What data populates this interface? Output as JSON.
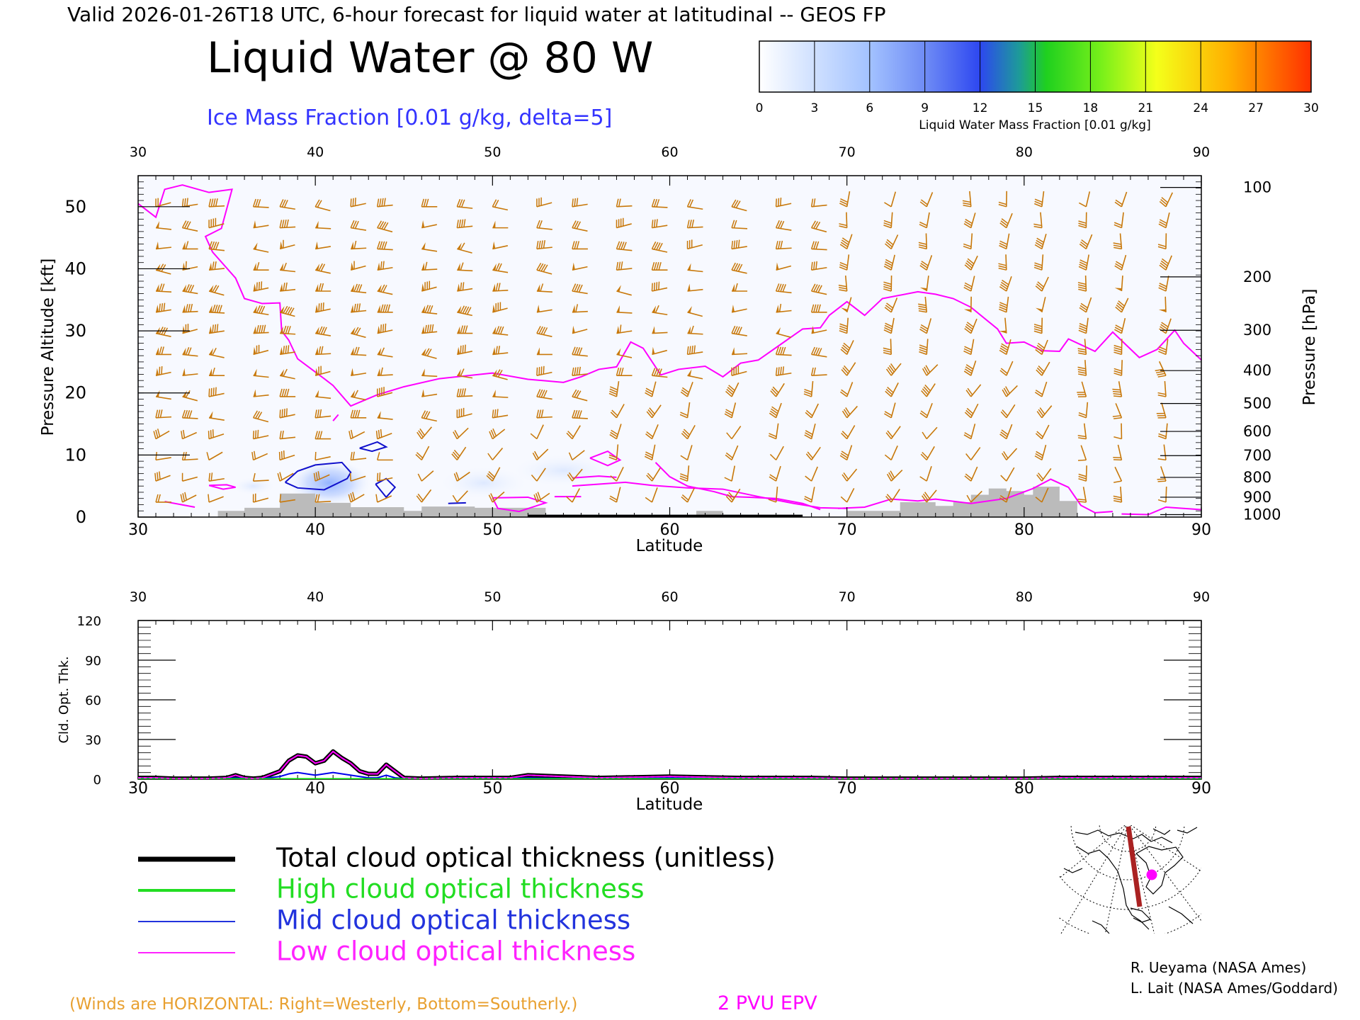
{
  "header": {
    "top_title": "Valid 2026-01-26T18 UTC, 6-hour forecast for liquid water at latitudinal -- GEOS FP",
    "main_title": "Liquid Water @ 80 W",
    "ice_label": "Ice Mass Fraction [0.01 g/kg, delta=5]"
  },
  "colorbar": {
    "ticks": [
      "0",
      "3",
      "6",
      "9",
      "12",
      "15",
      "18",
      "21",
      "24",
      "27",
      "30"
    ],
    "label": "Liquid Water Mass Fraction [0.01 g/kg]",
    "colors": [
      "#f8faff",
      "#c9dcff",
      "#9bbcff",
      "#7a8ef5",
      "#3f52f0",
      "#1e9ea0",
      "#28d628",
      "#7ef51a",
      "#f2ff1a",
      "#ffb000",
      "#ff3a00"
    ]
  },
  "chart_data": [
    {
      "type": "heatmap",
      "title": "Liquid Water @ 80 W",
      "xlabel": "Latitude",
      "ylabel": "Pressure Altitude [kft]",
      "ylabel_right": "Pressure [hPa]",
      "xlim": [
        30,
        90
      ],
      "ylim": [
        0,
        55
      ],
      "x_ticks": [
        30,
        40,
        50,
        60,
        70,
        80,
        90
      ],
      "y_ticks": [
        0,
        10,
        20,
        30,
        40,
        50
      ],
      "pressure_ticks": [
        {
          "label": "100",
          "kft": 53.1
        },
        {
          "label": "200",
          "kft": 38.7
        },
        {
          "label": "300",
          "kft": 30.1
        },
        {
          "label": "400",
          "kft": 23.6
        },
        {
          "label": "500",
          "kft": 18.3
        },
        {
          "label": "600",
          "kft": 13.8
        },
        {
          "label": "700",
          "kft": 9.9
        },
        {
          "label": "800",
          "kft": 6.4
        },
        {
          "label": "900",
          "kft": 3.2
        },
        {
          "label": "1000",
          "kft": 0.4
        }
      ],
      "epv_2pvu_line": [
        [
          30,
          50.5
        ],
        [
          31,
          48.3
        ],
        [
          31.5,
          52.8
        ],
        [
          32.5,
          53.5
        ],
        [
          34,
          52.3
        ],
        [
          35.3,
          52.8
        ],
        [
          34.7,
          46.5
        ],
        [
          33.8,
          45.2
        ],
        [
          34.2,
          42.7
        ],
        [
          35.5,
          38.5
        ],
        [
          36,
          35.2
        ],
        [
          37,
          34.4
        ],
        [
          38,
          34.5
        ],
        [
          38.1,
          30
        ],
        [
          38.5,
          28.5
        ],
        [
          39,
          25.5
        ],
        [
          40.5,
          22.3
        ],
        [
          41,
          21.2
        ],
        [
          42,
          17.9
        ],
        [
          43.5,
          19.7
        ],
        [
          45,
          21
        ],
        [
          47,
          22.3
        ],
        [
          50,
          23.2
        ],
        [
          52,
          22.2
        ],
        [
          54,
          21.7
        ],
        [
          55,
          22.6
        ],
        [
          56,
          23.8
        ],
        [
          57,
          24.2
        ],
        [
          57.8,
          28.2
        ],
        [
          58.5,
          27.2
        ],
        [
          59.5,
          22.9
        ],
        [
          60.5,
          23.8
        ],
        [
          62,
          24.3
        ],
        [
          63,
          22.6
        ],
        [
          64,
          24.8
        ],
        [
          65,
          25.3
        ],
        [
          66,
          27.3
        ],
        [
          67.5,
          30.3
        ],
        [
          68.5,
          30.5
        ],
        [
          69,
          32.5
        ],
        [
          70,
          34.7
        ],
        [
          71,
          32.5
        ],
        [
          72,
          35.2
        ],
        [
          74,
          36.3
        ],
        [
          75,
          35.9
        ],
        [
          76,
          35.2
        ],
        [
          77,
          33.8
        ],
        [
          78.5,
          30.3
        ],
        [
          79,
          28
        ],
        [
          80,
          28.2
        ],
        [
          81,
          26.8
        ],
        [
          82,
          26.7
        ],
        [
          82.5,
          28.7
        ],
        [
          84,
          26.7
        ],
        [
          85,
          29.8
        ],
        [
          86.5,
          25.7
        ],
        [
          87.5,
          27
        ],
        [
          88.5,
          30.1
        ],
        [
          89,
          28
        ],
        [
          90,
          25.3
        ]
      ],
      "ice_contour_5": [
        [
          [
            38.3,
            5.6
          ],
          [
            39,
            7.4
          ],
          [
            40,
            8.4
          ],
          [
            41.5,
            8.8
          ],
          [
            42,
            7.2
          ],
          [
            41.8,
            6.2
          ],
          [
            40.5,
            4.4
          ],
          [
            39,
            4.7
          ],
          [
            38.3,
            5.6
          ]
        ],
        [
          [
            42.5,
            11.1
          ],
          [
            43.5,
            12.1
          ],
          [
            44,
            11.3
          ],
          [
            43.2,
            10.6
          ],
          [
            42.5,
            11.1
          ]
        ],
        [
          [
            43.4,
            5.3
          ],
          [
            44,
            6.2
          ],
          [
            44.5,
            4.8
          ],
          [
            44,
            3.2
          ],
          [
            43.4,
            5.3
          ]
        ],
        [
          [
            47.5,
            2.2
          ],
          [
            48.5,
            2.3
          ]
        ]
      ],
      "liquid_water_maxima": [
        {
          "lat": 40,
          "kft": 5.5,
          "value": 9
        },
        {
          "lat": 49,
          "kft": 5,
          "value": 3
        },
        {
          "lat": 53,
          "kft": 6,
          "value": 3
        }
      ],
      "surface_kft": [
        [
          30,
          0
        ],
        [
          34.5,
          0
        ],
        [
          34.5,
          1
        ],
        [
          36,
          1
        ],
        [
          36,
          1.5
        ],
        [
          38,
          1.5
        ],
        [
          38,
          3.8
        ],
        [
          40,
          3.8
        ],
        [
          40,
          2.3
        ],
        [
          42,
          2.3
        ],
        [
          42,
          1.6
        ],
        [
          45,
          1.6
        ],
        [
          45,
          1
        ],
        [
          46,
          1
        ],
        [
          46,
          1.7
        ],
        [
          49,
          1.7
        ],
        [
          49,
          1.5
        ],
        [
          53,
          1.5
        ],
        [
          53,
          0
        ],
        [
          61.5,
          0
        ],
        [
          61.5,
          1
        ],
        [
          63,
          1
        ],
        [
          63,
          0
        ],
        [
          70,
          0
        ],
        [
          70,
          1
        ],
        [
          73,
          1
        ],
        [
          73,
          2.4
        ],
        [
          75,
          2.4
        ],
        [
          75,
          1.8
        ],
        [
          76,
          1.8
        ],
        [
          76,
          2.4
        ],
        [
          77,
          2.4
        ],
        [
          77,
          3.6
        ],
        [
          78,
          3.6
        ],
        [
          78,
          4.6
        ],
        [
          79,
          4.6
        ],
        [
          79,
          4.2
        ],
        [
          80,
          4.2
        ],
        [
          80,
          3.6
        ],
        [
          80.5,
          3.6
        ],
        [
          80.5,
          4.9
        ],
        [
          82,
          4.9
        ],
        [
          82,
          2.6
        ],
        [
          83,
          2.6
        ],
        [
          83,
          0
        ],
        [
          90,
          0
        ]
      ],
      "wind_barb_latitudes": [
        31,
        32.5,
        34,
        36.5,
        38,
        40,
        42,
        43.5,
        46,
        48,
        50,
        52.5,
        54.5,
        57,
        59,
        61,
        63.5,
        66,
        68,
        70,
        72.5,
        74.5,
        77,
        79,
        81,
        83.5,
        85.5,
        88
      ]
    },
    {
      "type": "line",
      "ylabel": "Cld. Opt. Thk.",
      "xlabel": "Latitude",
      "xlim": [
        30,
        90
      ],
      "ylim": [
        0,
        120
      ],
      "x_ticks": [
        30,
        40,
        50,
        60,
        70,
        80,
        90
      ],
      "y_ticks": [
        0,
        30,
        60,
        90,
        120
      ],
      "x": [
        30,
        31,
        32,
        33,
        34,
        35,
        35.5,
        36,
        36.5,
        37,
        38,
        38.5,
        39,
        39.5,
        40,
        40.5,
        41,
        41.5,
        42,
        42.5,
        43,
        43.5,
        44,
        44.5,
        45,
        46,
        48,
        50,
        51,
        52,
        54,
        56,
        58,
        60,
        62,
        64,
        66,
        68,
        70,
        72,
        74,
        76,
        78,
        80,
        82,
        84,
        86,
        88,
        90
      ],
      "series": [
        {
          "name": "Total cloud optical thickness (unitless)",
          "color": "#000000",
          "values": [
            1,
            1,
            0.5,
            0.5,
            0.5,
            1,
            3,
            1,
            0.5,
            1,
            6,
            14,
            18,
            17,
            12,
            14,
            21,
            16,
            12,
            6,
            4,
            4,
            11,
            6,
            1,
            0.5,
            1,
            1,
            1,
            3,
            2,
            1,
            1.5,
            2,
            1.5,
            1,
            1,
            1,
            0.5,
            0.5,
            0.5,
            0.5,
            0.5,
            0.5,
            1,
            1,
            1,
            1,
            1
          ]
        },
        {
          "name": "High cloud optical thickness",
          "color": "#00e000",
          "values": [
            0,
            0,
            0,
            0,
            0,
            0,
            0,
            0,
            0,
            0,
            0,
            0,
            0,
            0,
            0,
            0,
            0,
            0,
            0,
            0,
            0,
            0,
            0,
            0,
            0,
            0,
            0,
            0,
            0,
            0,
            0,
            0,
            0,
            0,
            0,
            0,
            0,
            0,
            0,
            0,
            0,
            0,
            0,
            0,
            0,
            0,
            0,
            0,
            0
          ]
        },
        {
          "name": "Mid cloud optical thickness",
          "color": "#0000ee",
          "values": [
            0.5,
            0.5,
            0.3,
            0.3,
            0.3,
            0.5,
            1,
            0.5,
            0.3,
            0.5,
            2,
            4,
            5,
            4,
            3,
            4,
            5,
            4,
            3,
            2,
            1,
            1,
            3,
            1,
            0.5,
            0.3,
            0.5,
            0.5,
            0.5,
            1,
            0.5,
            0.5,
            0.5,
            1,
            0.5,
            0.5,
            0.5,
            0.5,
            0.3,
            0.3,
            0.3,
            0.3,
            0.3,
            0.3,
            0.5,
            0.5,
            0.5,
            0.5,
            0.5
          ]
        },
        {
          "name": "Low cloud optical thickness",
          "color": "#ff00ff",
          "values": [
            1,
            1,
            0.5,
            0.5,
            0.5,
            1,
            3,
            1,
            0.5,
            1,
            6,
            14,
            18,
            17,
            12,
            14,
            21,
            16,
            12,
            6,
            4,
            4,
            11,
            6,
            1,
            0.5,
            1,
            1,
            1,
            3,
            2,
            1,
            1.5,
            2,
            1.5,
            1,
            1,
            1,
            0.5,
            0.5,
            0.5,
            0.5,
            0.5,
            0.5,
            1,
            1,
            1,
            1,
            1
          ]
        }
      ]
    }
  ],
  "legend": {
    "items": [
      {
        "label": "Total cloud optical thickness (unitless)",
        "color": "#000000"
      },
      {
        "label": "High cloud optical thickness",
        "color": "#22dd22"
      },
      {
        "label": "Mid cloud optical thickness",
        "color": "#2233dd"
      },
      {
        "label": "Low cloud optical thickness",
        "color": "#ff22ff"
      }
    ]
  },
  "footer": {
    "winds_note": "(Winds are HORIZONTAL: Right=Westerly, Bottom=Southerly.)",
    "pvu_label": "2 PVU EPV",
    "credit1": "R. Ueyama (NASA Ames)",
    "credit2": "L. Lait (NASA Ames/Goddard)"
  },
  "colors": {
    "wind": "#c8780a",
    "epv": "#ff00ff",
    "ice": "#1010cc",
    "terrain": "#bbbbbb",
    "winds_note": "#e8a030",
    "pvu": "#ff00ff"
  },
  "inset_map": {
    "icon": "north-polar-map-icon",
    "track_color": "#aa2222",
    "marker_color": "#ff00ff"
  }
}
